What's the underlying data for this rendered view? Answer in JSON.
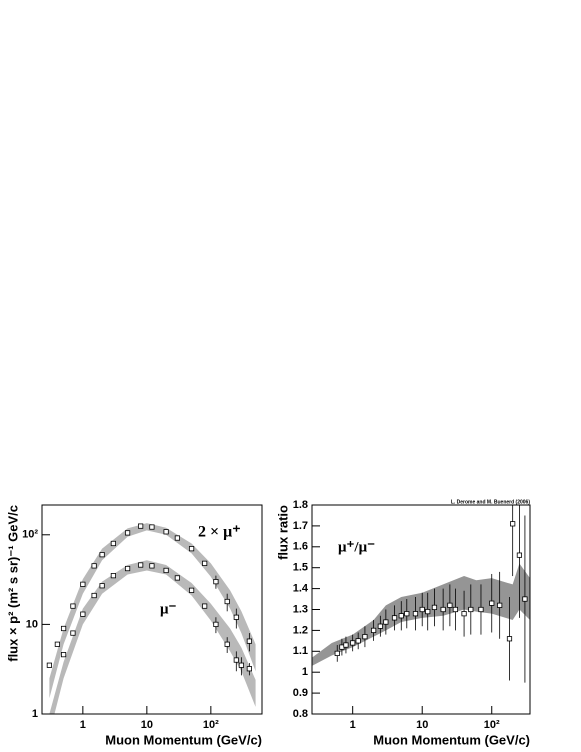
{
  "chart_data": [
    {
      "type": "scatter",
      "xlog": true,
      "ylog": true,
      "xlabel": "Muon Momentum (GeV/c)",
      "ylabel": "flux × p² (m² s sr)⁻¹ GeV/c",
      "annotations": [
        "2 × μ⁺",
        "μ⁻"
      ],
      "xlim": [
        0.23,
        630
      ],
      "ylim": [
        1,
        215
      ],
      "xticks": [
        1,
        10,
        {
          "value": 100,
          "label": "10²"
        }
      ],
      "yticks": [
        1,
        10,
        {
          "value": 100,
          "label": "10²"
        }
      ],
      "series": [
        {
          "color": "#000000",
          "band_color": "#a8a8a8",
          "x": [
            0.3,
            0.4,
            0.5,
            0.7,
            1,
            1.5,
            2,
            3,
            5,
            8,
            12,
            20,
            30,
            50,
            80,
            120,
            180,
            250,
            400
          ],
          "values": [
            3.5,
            6,
            9,
            16,
            28,
            45,
            60,
            80,
            105,
            125,
            122,
            108,
            92,
            70,
            48,
            30,
            18,
            12,
            6.5
          ],
          "errors": [
            null,
            null,
            null,
            null,
            null,
            null,
            null,
            null,
            null,
            null,
            null,
            null,
            null,
            null,
            null,
            5,
            4,
            3,
            1.5
          ],
          "band": {
            "x": [
              0.3,
              0.5,
              1,
              2,
              5,
              10,
              20,
              50,
              100,
              200,
              300,
              500
            ],
            "lower": [
              1.5,
              6,
              22,
              52,
              95,
              112,
              100,
              62,
              34,
              15,
              8,
              3
            ],
            "upper": [
              2.5,
              9,
              32,
              70,
              118,
              135,
              120,
              80,
              48,
              24,
              14,
              6
            ]
          }
        },
        {
          "color": "#000000",
          "band_color": "#a8a8a8",
          "x": [
            0.5,
            0.7,
            1,
            1.5,
            2,
            3,
            5,
            8,
            12,
            20,
            30,
            50,
            80,
            120,
            180,
            250,
            300,
            400
          ],
          "values": [
            4.6,
            8,
            13,
            21,
            27,
            35,
            42,
            46,
            45,
            40,
            33,
            24,
            16,
            10,
            6,
            4,
            3.5,
            3.2
          ],
          "errors": [
            null,
            null,
            null,
            null,
            null,
            null,
            null,
            null,
            null,
            null,
            null,
            null,
            null,
            2,
            1.2,
            1,
            0.8,
            0.5
          ],
          "band": {
            "x": [
              0.3,
              0.5,
              1,
              2,
              5,
              10,
              20,
              50,
              100,
              200,
              300,
              500
            ],
            "lower": [
              0.6,
              2.5,
              10,
              22,
              36,
              40,
              36,
              21,
              11,
              5,
              3,
              1.2
            ],
            "upper": [
              1,
              3.8,
              15,
              30,
              46,
              52,
              46,
              29,
              17,
              9,
              5.5,
              2.4
            ]
          }
        }
      ]
    },
    {
      "type": "scatter",
      "xlog": true,
      "ylog": false,
      "xlabel": "Muon Momentum (GeV/c)",
      "ylabel": "flux ratio",
      "annotations": [
        "μ⁺/μ⁻",
        "L. Derome and M. Buenerd (2006)"
      ],
      "xlim": [
        0.26,
        355
      ],
      "ylim": [
        0.8,
        1.8
      ],
      "xticks": [
        1,
        10,
        {
          "value": 100,
          "label": "10²"
        }
      ],
      "yticks": [
        0.8,
        0.9,
        1,
        1.1,
        1.2,
        1.3,
        1.4,
        1.5,
        1.6,
        1.7,
        1.8
      ],
      "series": [
        {
          "color": "#000000",
          "band_color": "#7a7a7a",
          "x": [
            0.6,
            0.7,
            0.8,
            1,
            1.2,
            1.5,
            2,
            2.5,
            3,
            4,
            5,
            6,
            8,
            10,
            12,
            15,
            20,
            25,
            30,
            40,
            50,
            70,
            100,
            130,
            180,
            200,
            250,
            300
          ],
          "values": [
            1.09,
            1.12,
            1.13,
            1.14,
            1.15,
            1.17,
            1.2,
            1.22,
            1.24,
            1.26,
            1.27,
            1.28,
            1.28,
            1.3,
            1.29,
            1.31,
            1.3,
            1.32,
            1.3,
            1.28,
            1.3,
            1.3,
            1.33,
            1.32,
            1.16,
            1.71,
            1.56,
            1.35
          ],
          "errors": [
            0.04,
            0.04,
            0.04,
            0.04,
            0.04,
            0.05,
            0.05,
            0.05,
            0.06,
            0.06,
            0.07,
            0.07,
            0.08,
            0.08,
            0.09,
            0.09,
            0.1,
            0.1,
            0.1,
            0.11,
            0.12,
            0.12,
            0.14,
            0.16,
            0.2,
            0.25,
            0.3,
            0.4
          ],
          "band": {
            "x": [
              0.26,
              0.5,
              1,
              2,
              3,
              5,
              10,
              20,
              40,
              60,
              100,
              200,
              250,
              355
            ],
            "lower": [
              1.03,
              1.08,
              1.12,
              1.17,
              1.2,
              1.24,
              1.26,
              1.27,
              1.3,
              1.29,
              1.28,
              1.25,
              1.3,
              1.25
            ],
            "upper": [
              1.07,
              1.14,
              1.18,
              1.25,
              1.32,
              1.36,
              1.38,
              1.42,
              1.46,
              1.44,
              1.45,
              1.42,
              1.52,
              1.45
            ]
          }
        }
      ]
    }
  ]
}
